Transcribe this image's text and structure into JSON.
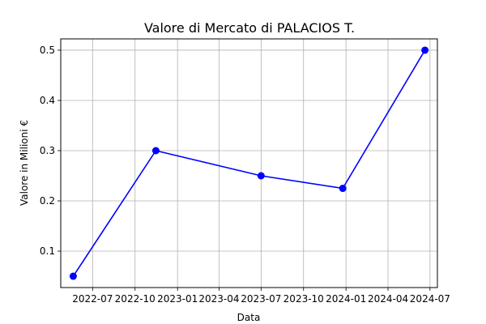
{
  "chart_data": {
    "type": "line",
    "title": "Valore di Mercato di PALACIOS T.",
    "xlabel": "Data",
    "ylabel": "Valore in Milioni €",
    "grid": true,
    "x_tick_labels": [
      "2022-07",
      "2022-10",
      "2023-01",
      "2023-04",
      "2023-07",
      "2023-10",
      "2024-01",
      "2024-04",
      "2024-07"
    ],
    "y_tick_labels": [
      "0.1",
      "0.2",
      "0.3",
      "0.4",
      "0.5"
    ],
    "series": [
      {
        "color": "#0000ff",
        "points": [
          {
            "x": "2022-05-20",
            "y": 0.05
          },
          {
            "x": "2022-11-15",
            "y": 0.3
          },
          {
            "x": "2023-07-01",
            "y": 0.25
          },
          {
            "x": "2023-12-25",
            "y": 0.225
          },
          {
            "x": "2024-06-20",
            "y": 0.5
          }
        ]
      }
    ]
  }
}
